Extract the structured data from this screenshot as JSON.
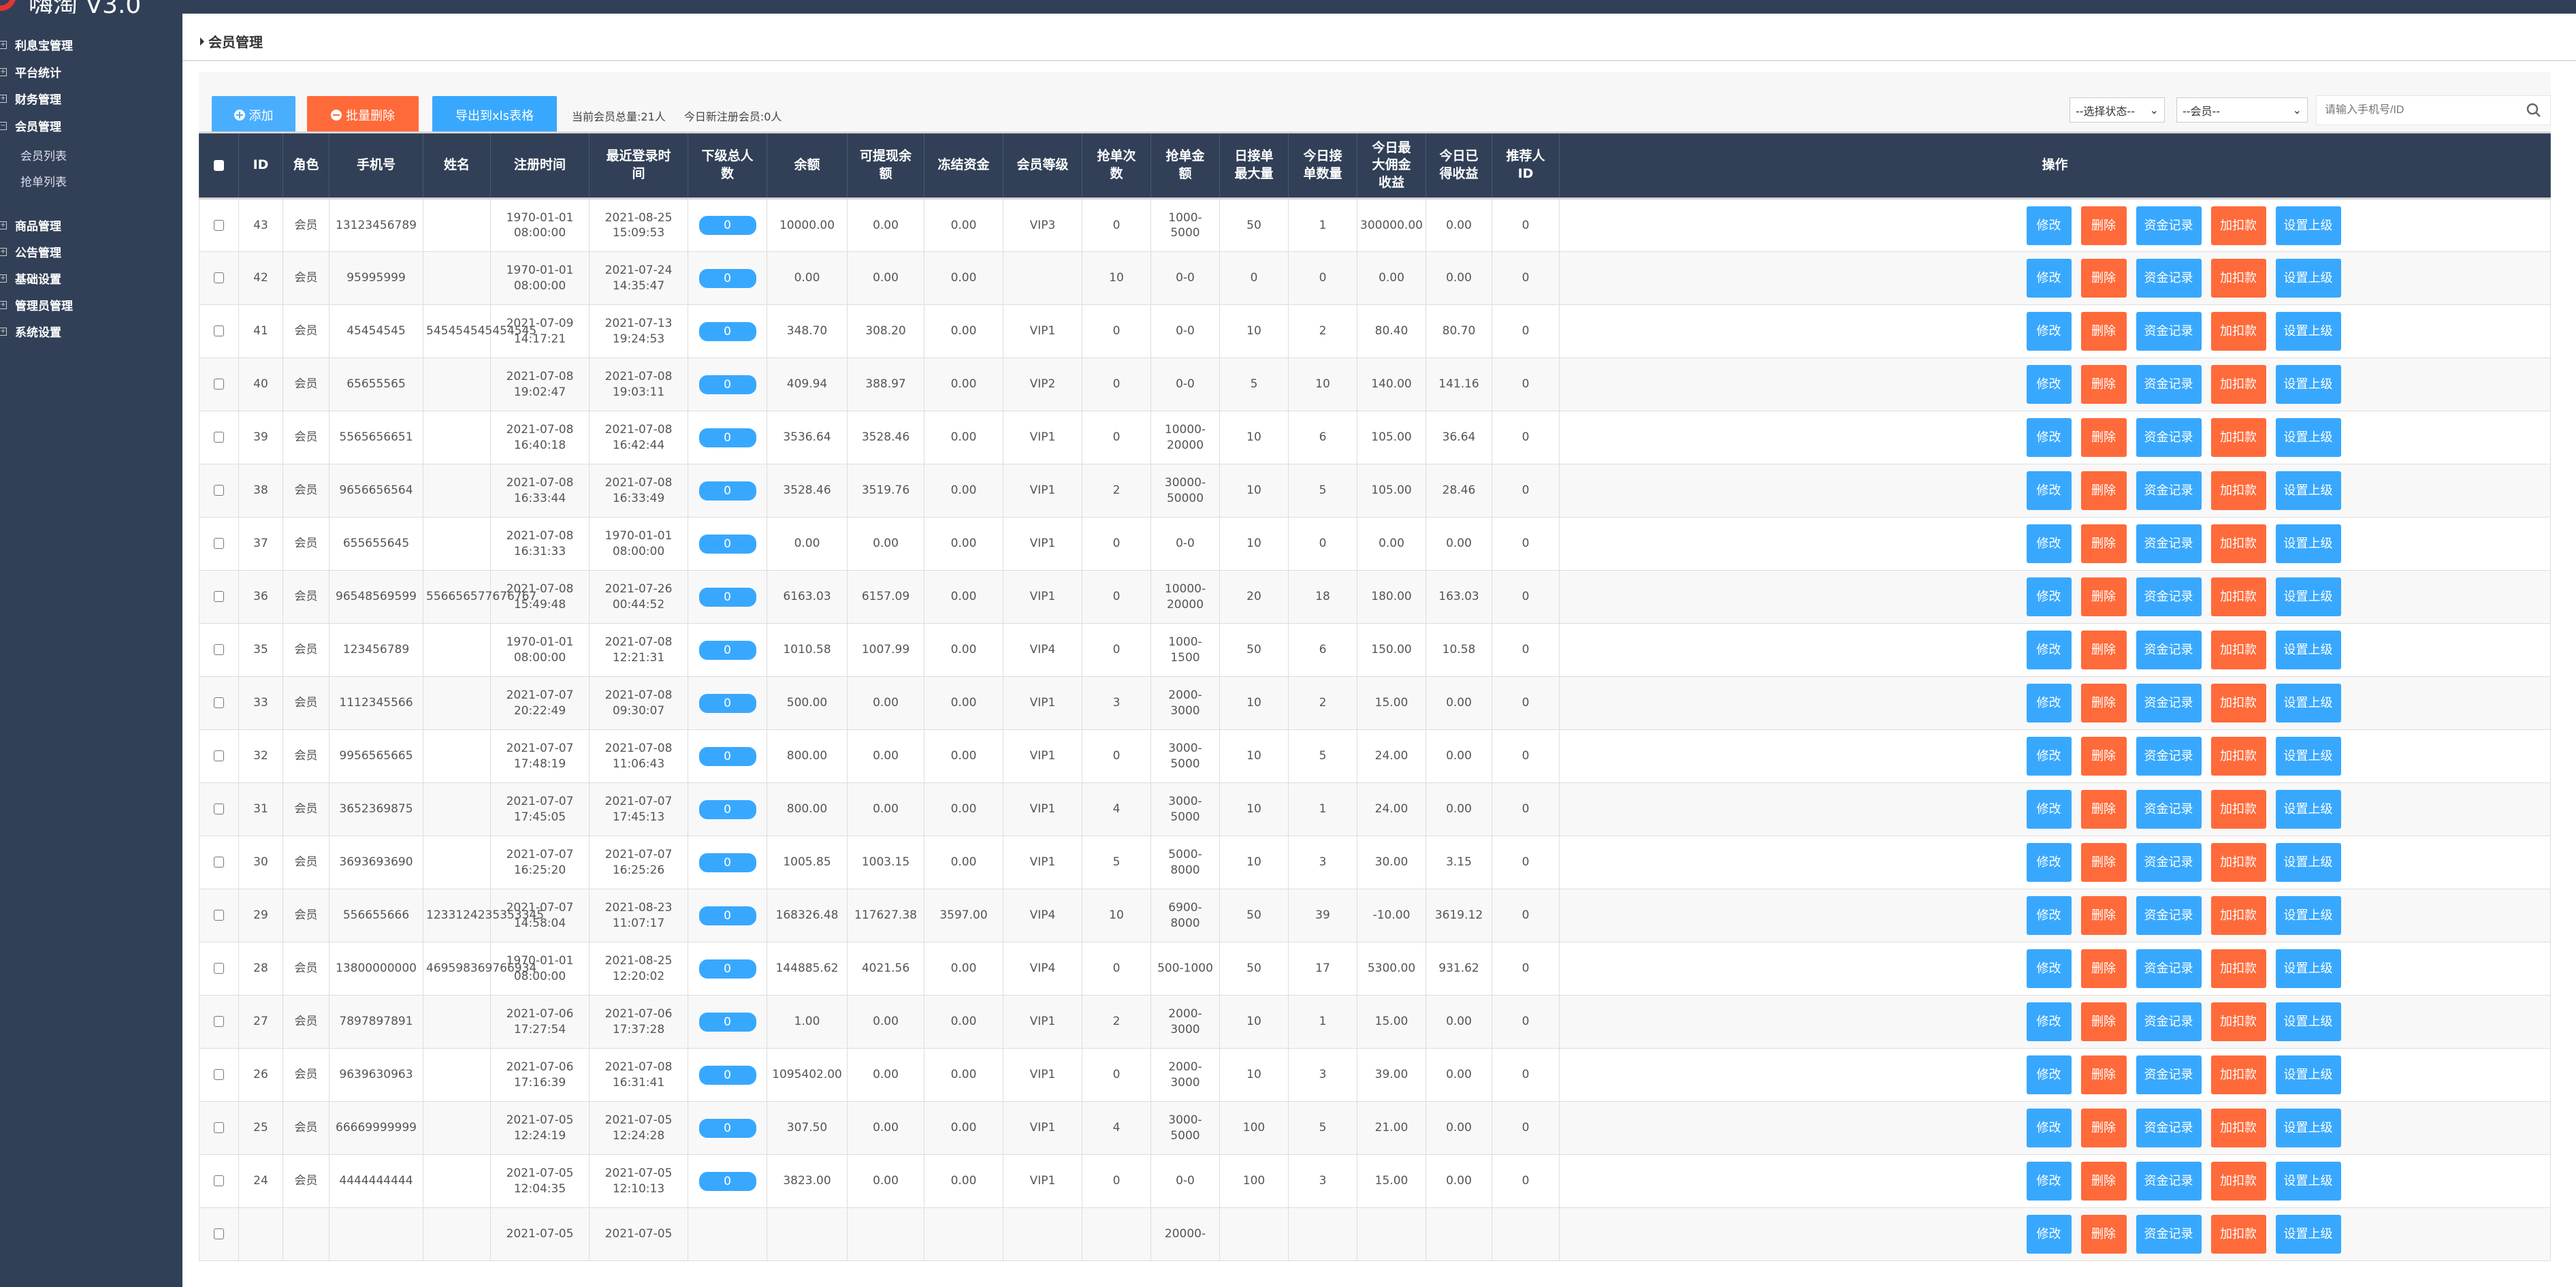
{
  "app": {
    "title": "嗨淘 V3.0"
  },
  "colors": {
    "sidebar": "#314057",
    "primary": "#38a8fe",
    "danger": "#ff6a3a",
    "brand": "#e53333"
  },
  "sidebar": {
    "items": [
      {
        "label": "利息宝管理",
        "icon": "expand-icon"
      },
      {
        "label": "平台统计",
        "icon": "expand-icon"
      },
      {
        "label": "财务管理",
        "icon": "expand-icon"
      },
      {
        "label": "会员管理",
        "icon": "collapse-icon",
        "children": [
          "会员列表",
          "抢单列表"
        ]
      },
      {
        "label": "商品管理",
        "icon": "expand-icon"
      },
      {
        "label": "公告管理",
        "icon": "expand-icon"
      },
      {
        "label": "基础设置",
        "icon": "expand-icon"
      },
      {
        "label": "管理员管理",
        "icon": "expand-icon"
      },
      {
        "label": "系统设置",
        "icon": "expand-icon"
      }
    ]
  },
  "page": {
    "title": "会员管理"
  },
  "toolbar": {
    "add_label": "添加",
    "batch_delete_label": "批量删除",
    "export_label": "导出到xls表格",
    "total_members": "当前会员总量:21人",
    "today_new": "今日新注册会员:0人",
    "status_select": "--选择状态--",
    "role_select": "--会员--",
    "search_placeholder": "请输入手机号/ID"
  },
  "table": {
    "headers": [
      "ID",
      "角色",
      "手机号",
      "姓名",
      "注册时间",
      "最近登录时\n间",
      "下级总人\n数",
      "余额",
      "可提现余\n额",
      "冻结资金",
      "会员等级",
      "抢单次\n数",
      "抢单金\n额",
      "日接单\n最大量",
      "今日接\n单数量",
      "今日最\n大佣金\n收益",
      "今日已\n得收益",
      "推荐人\nID",
      "操作"
    ],
    "actions": [
      "修改",
      "删除",
      "资金记录",
      "加扣款",
      "设置上级"
    ],
    "rows": [
      [
        "43",
        "会员",
        "13123456789",
        "",
        "1970-01-01 08:00:00",
        "2021-08-25 15:09:53",
        "0",
        "10000.00",
        "0.00",
        "0.00",
        "VIP3",
        "0",
        "1000-5000",
        "50",
        "1",
        "300000.00",
        "0.00",
        "0"
      ],
      [
        "42",
        "会员",
        "95995999",
        "",
        "1970-01-01 08:00:00",
        "2021-07-24 14:35:47",
        "0",
        "0.00",
        "0.00",
        "0.00",
        "",
        "10",
        "0-0",
        "0",
        "0",
        "0.00",
        "0.00",
        "0"
      ],
      [
        "41",
        "会员",
        "45454545",
        "545454545454545",
        "2021-07-09 14:17:21",
        "2021-07-13 19:24:53",
        "0",
        "348.70",
        "308.20",
        "0.00",
        "VIP1",
        "0",
        "0-0",
        "10",
        "2",
        "80.40",
        "80.70",
        "0"
      ],
      [
        "40",
        "会员",
        "65655565",
        "",
        "2021-07-08 19:02:47",
        "2021-07-08 19:03:11",
        "0",
        "409.94",
        "388.97",
        "0.00",
        "VIP2",
        "0",
        "0-0",
        "5",
        "10",
        "140.00",
        "141.16",
        "0"
      ],
      [
        "39",
        "会员",
        "5565656651",
        "",
        "2021-07-08 16:40:18",
        "2021-07-08 16:42:44",
        "0",
        "3536.64",
        "3528.46",
        "0.00",
        "VIP1",
        "0",
        "10000-20000",
        "10",
        "6",
        "105.00",
        "36.64",
        "0"
      ],
      [
        "38",
        "会员",
        "9656656564",
        "",
        "2021-07-08 16:33:44",
        "2021-07-08 16:33:49",
        "0",
        "3528.46",
        "3519.76",
        "0.00",
        "VIP1",
        "2",
        "30000-50000",
        "10",
        "5",
        "105.00",
        "28.46",
        "0"
      ],
      [
        "37",
        "会员",
        "655655645",
        "",
        "2021-07-08 16:31:33",
        "1970-01-01 08:00:00",
        "0",
        "0.00",
        "0.00",
        "0.00",
        "VIP1",
        "0",
        "0-0",
        "10",
        "0",
        "0.00",
        "0.00",
        "0"
      ],
      [
        "36",
        "会员",
        "96548569599",
        "556656577676767",
        "2021-07-08 15:49:48",
        "2021-07-26 00:44:52",
        "0",
        "6163.03",
        "6157.09",
        "0.00",
        "VIP1",
        "0",
        "10000-20000",
        "20",
        "18",
        "180.00",
        "163.03",
        "0"
      ],
      [
        "35",
        "会员",
        "123456789",
        "",
        "1970-01-01 08:00:00",
        "2021-07-08 12:21:31",
        "0",
        "1010.58",
        "1007.99",
        "0.00",
        "VIP4",
        "0",
        "1000-1500",
        "50",
        "6",
        "150.00",
        "10.58",
        "0"
      ],
      [
        "33",
        "会员",
        "1112345566",
        "",
        "2021-07-07 20:22:49",
        "2021-07-08 09:30:07",
        "0",
        "500.00",
        "0.00",
        "0.00",
        "VIP1",
        "3",
        "2000-3000",
        "10",
        "2",
        "15.00",
        "0.00",
        "0"
      ],
      [
        "32",
        "会员",
        "9956565665",
        "",
        "2021-07-07 17:48:19",
        "2021-07-08 11:06:43",
        "0",
        "800.00",
        "0.00",
        "0.00",
        "VIP1",
        "0",
        "3000-5000",
        "10",
        "5",
        "24.00",
        "0.00",
        "0"
      ],
      [
        "31",
        "会员",
        "3652369875",
        "",
        "2021-07-07 17:45:05",
        "2021-07-07 17:45:13",
        "0",
        "800.00",
        "0.00",
        "0.00",
        "VIP1",
        "4",
        "3000-5000",
        "10",
        "1",
        "24.00",
        "0.00",
        "0"
      ],
      [
        "30",
        "会员",
        "3693693690",
        "",
        "2021-07-07 16:25:20",
        "2021-07-07 16:25:26",
        "0",
        "1005.85",
        "1003.15",
        "0.00",
        "VIP1",
        "5",
        "5000-8000",
        "10",
        "3",
        "30.00",
        "3.15",
        "0"
      ],
      [
        "29",
        "会员",
        "556655666",
        "1233124235353345",
        "2021-07-07 14:58:04",
        "2021-08-23 11:07:17",
        "0",
        "168326.48",
        "117627.38",
        "3597.00",
        "VIP4",
        "10",
        "6900-8000",
        "50",
        "39",
        "-10.00",
        "3619.12",
        "0"
      ],
      [
        "28",
        "会员",
        "13800000000",
        "469598369766934",
        "1970-01-01 08:00:00",
        "2021-08-25 12:20:02",
        "0",
        "144885.62",
        "4021.56",
        "0.00",
        "VIP4",
        "0",
        "500-1000",
        "50",
        "17",
        "5300.00",
        "931.62",
        "0"
      ],
      [
        "27",
        "会员",
        "7897897891",
        "",
        "2021-07-06 17:27:54",
        "2021-07-06 17:37:28",
        "0",
        "1.00",
        "0.00",
        "0.00",
        "VIP1",
        "2",
        "2000-3000",
        "10",
        "1",
        "15.00",
        "0.00",
        "0"
      ],
      [
        "26",
        "会员",
        "9639630963",
        "",
        "2021-07-06 17:16:39",
        "2021-07-08 16:31:41",
        "0",
        "1095402.00",
        "0.00",
        "0.00",
        "VIP1",
        "0",
        "2000-3000",
        "10",
        "3",
        "39.00",
        "0.00",
        "0"
      ],
      [
        "25",
        "会员",
        "66669999999",
        "",
        "2021-07-05 12:24:19",
        "2021-07-05 12:24:28",
        "0",
        "307.50",
        "0.00",
        "0.00",
        "VIP1",
        "4",
        "3000-5000",
        "100",
        "5",
        "21.00",
        "0.00",
        "0"
      ],
      [
        "24",
        "会员",
        "4444444444",
        "",
        "2021-07-05 12:04:35",
        "2021-07-05 12:10:13",
        "0",
        "3823.00",
        "0.00",
        "0.00",
        "VIP1",
        "0",
        "0-0",
        "100",
        "3",
        "15.00",
        "0.00",
        "0"
      ],
      [
        "",
        "",
        "",
        "",
        "2021-07-05",
        "2021-07-05",
        "",
        "",
        "",
        "",
        "",
        "",
        "20000-",
        "",
        "",
        "",
        "",
        ""
      ]
    ]
  }
}
